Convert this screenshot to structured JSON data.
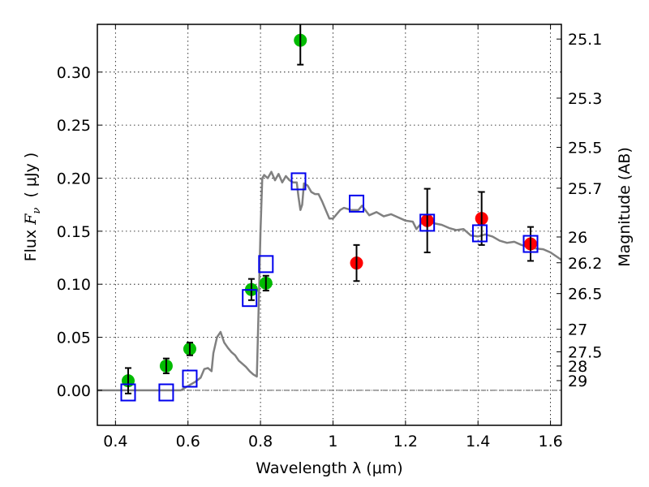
{
  "chart_data": {
    "type": "scatter",
    "title": "",
    "xlabel": "Wavelength  λ (μm)",
    "ylabel": "Flux  F_ν  ( μJy )",
    "ylabel_parts": {
      "prefix": "Flux ",
      "symbol": "F",
      "subscript": "ν",
      "suffix": "  ( μJy )"
    },
    "y2label": "Magnitude (AB)",
    "xlim": [
      0.35,
      1.63
    ],
    "ylim": [
      -0.033,
      0.345
    ],
    "grid": true,
    "xticks": [
      0.4,
      0.6,
      0.8,
      1.0,
      1.2,
      1.4,
      1.6
    ],
    "xtick_labels": [
      "0.4",
      "0.6",
      "0.8",
      "1",
      "1.2",
      "1.4",
      "1.6"
    ],
    "yticks": [
      0.0,
      0.05,
      0.1,
      0.15,
      0.2,
      0.25,
      0.3
    ],
    "ytick_labels": [
      "0.00",
      "0.05",
      "0.10",
      "0.15",
      "0.20",
      "0.25",
      "0.30"
    ],
    "y2ticks": [
      {
        "label": "25.1",
        "mag": 25.1
      },
      {
        "label": "25.3",
        "mag": 25.3
      },
      {
        "label": "25.5",
        "mag": 25.5
      },
      {
        "label": "25.7",
        "mag": 25.7
      },
      {
        "label": "26",
        "mag": 26.0
      },
      {
        "label": "26.2",
        "mag": 26.2
      },
      {
        "label": "26.5",
        "mag": 26.5
      },
      {
        "label": "27",
        "mag": 27.0
      },
      {
        "label": "27.5",
        "mag": 27.5
      },
      {
        "label": "28",
        "mag": 28.0
      },
      {
        "label": "29",
        "mag": 29.0
      }
    ],
    "series": [
      {
        "name": "green-photometry",
        "kind": "points_with_errors",
        "color": "#00bb00",
        "x": [
          0.435,
          0.54,
          0.605,
          0.775,
          0.815,
          0.91
        ],
        "y": [
          0.009,
          0.023,
          0.039,
          0.095,
          0.101,
          0.33
        ],
        "yerr": [
          0.012,
          0.007,
          0.006,
          0.01,
          0.007,
          0.023
        ]
      },
      {
        "name": "red-photometry",
        "kind": "points_with_errors",
        "color": "#ff0000",
        "x": [
          1.065,
          1.26,
          1.41,
          1.545
        ],
        "y": [
          0.12,
          0.16,
          0.162,
          0.138
        ],
        "yerr": [
          0.017,
          0.03,
          0.025,
          0.016
        ]
      },
      {
        "name": "model-bandpass",
        "kind": "open_squares",
        "color": "#0000ee",
        "x": [
          0.435,
          0.54,
          0.605,
          0.77,
          0.815,
          0.905,
          1.065,
          1.26,
          1.405,
          1.545
        ],
        "y": [
          -0.002,
          -0.002,
          0.011,
          0.087,
          0.119,
          0.197,
          0.176,
          0.158,
          0.148,
          0.138
        ]
      },
      {
        "name": "model-spectrum",
        "kind": "line",
        "color": "#808080",
        "x": [
          0.35,
          0.58,
          0.6,
          0.62,
          0.635,
          0.645,
          0.655,
          0.665,
          0.67,
          0.68,
          0.69,
          0.7,
          0.71,
          0.72,
          0.73,
          0.74,
          0.75,
          0.76,
          0.77,
          0.78,
          0.79,
          0.795,
          0.8,
          0.805,
          0.81,
          0.82,
          0.83,
          0.84,
          0.85,
          0.86,
          0.87,
          0.88,
          0.89,
          0.9,
          0.905,
          0.91,
          0.915,
          0.92,
          0.93,
          0.94,
          0.95,
          0.96,
          0.97,
          0.98,
          0.99,
          1.0,
          1.02,
          1.03,
          1.05,
          1.07,
          1.08,
          1.1,
          1.12,
          1.14,
          1.16,
          1.18,
          1.2,
          1.22,
          1.23,
          1.25,
          1.27,
          1.3,
          1.32,
          1.34,
          1.36,
          1.38,
          1.4,
          1.42,
          1.44,
          1.46,
          1.48,
          1.5,
          1.52,
          1.55,
          1.58,
          1.6,
          1.63
        ],
        "y": [
          0.0,
          0.0,
          0.004,
          0.008,
          0.012,
          0.02,
          0.021,
          0.018,
          0.035,
          0.05,
          0.055,
          0.045,
          0.04,
          0.036,
          0.033,
          0.028,
          0.025,
          0.022,
          0.018,
          0.015,
          0.013,
          0.08,
          0.15,
          0.2,
          0.203,
          0.2,
          0.206,
          0.198,
          0.204,
          0.196,
          0.202,
          0.198,
          0.196,
          0.196,
          0.182,
          0.17,
          0.175,
          0.195,
          0.193,
          0.187,
          0.185,
          0.185,
          0.178,
          0.17,
          0.162,
          0.162,
          0.17,
          0.172,
          0.17,
          0.17,
          0.174,
          0.165,
          0.168,
          0.164,
          0.166,
          0.163,
          0.16,
          0.159,
          0.152,
          0.16,
          0.158,
          0.156,
          0.153,
          0.151,
          0.152,
          0.146,
          0.145,
          0.147,
          0.145,
          0.141,
          0.139,
          0.14,
          0.137,
          0.134,
          0.133,
          0.13,
          0.123
        ]
      }
    ],
    "zero_line": 0.0
  }
}
